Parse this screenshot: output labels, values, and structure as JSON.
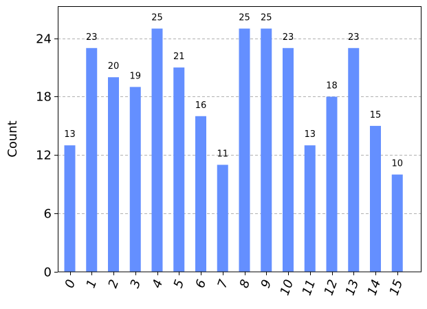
{
  "chart_data": {
    "type": "bar",
    "title": "",
    "xlabel": "",
    "ylabel": "Count",
    "categories": [
      "0",
      "1",
      "2",
      "3",
      "4",
      "5",
      "6",
      "7",
      "8",
      "9",
      "10",
      "11",
      "12",
      "13",
      "14",
      "15"
    ],
    "values": [
      13,
      23,
      20,
      19,
      25,
      21,
      16,
      11,
      25,
      25,
      23,
      13,
      18,
      23,
      15,
      10
    ],
    "value_labels": [
      "13",
      "23",
      "20",
      "19",
      "25",
      "21",
      "16",
      "11",
      "25",
      "25",
      "23",
      "13",
      "18",
      "23",
      "15",
      "10"
    ],
    "ylim": [
      0,
      27.3
    ],
    "yticks": [
      0,
      6,
      12,
      18,
      24
    ],
    "ytick_labels": [
      "0",
      "6",
      "12",
      "18",
      "24"
    ],
    "grid": "horizontal dashed",
    "legend": "none",
    "bar_color": "#648FFF",
    "grid_color": "#b0b0b0"
  }
}
